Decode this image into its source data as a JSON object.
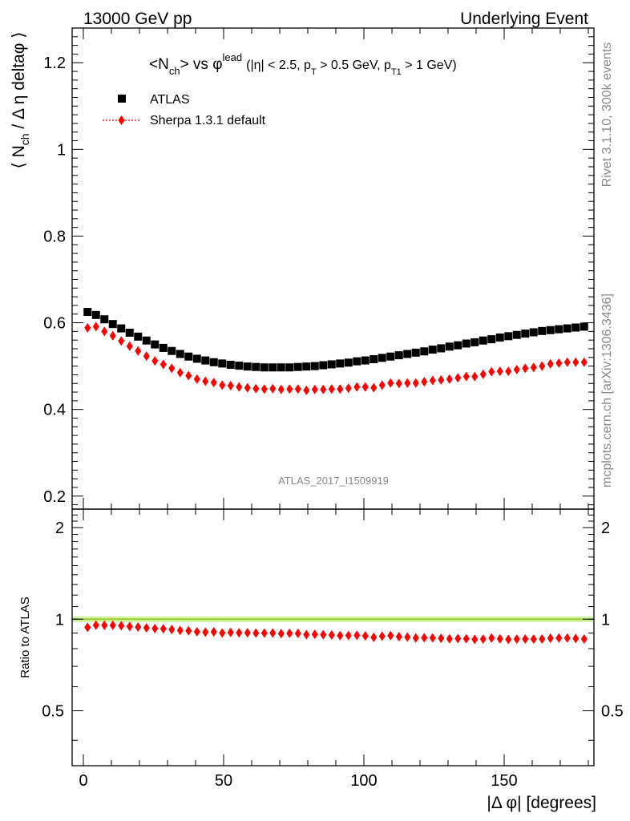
{
  "header": {
    "left": "13000 GeV pp",
    "right": "Underlying Event"
  },
  "side_labels": {
    "rivet": "Rivet 3.1.10,  300k events",
    "mcplots": "mcplots.cern.ch [arXiv:1306.3436]"
  },
  "analysis_id": "ATLAS_2017_I1509919",
  "chart_data": [
    {
      "type": "scatter",
      "title": {
        "lhs_main": "<N",
        "lhs_sub": "ch",
        "lhs_rest": "> vs ",
        "phi": "φ",
        "phi_sup": "lead",
        "cuts_a": "(|η| < 2.5, p",
        "cuts_sub1": "T",
        "cuts_b": " > 0.5 GeV, p",
        "cuts_sub2": "T1",
        "cuts_c": " > 1 GeV)"
      },
      "ylabel": "⟨ N_ch / Δ η deltaφ ⟩",
      "xlabel": "",
      "xlim": [
        -4,
        182
      ],
      "ylim": [
        0.17,
        1.28
      ],
      "yticks": [
        "0.2",
        "0.4",
        "0.6",
        "0.8",
        "1",
        "1.2"
      ],
      "ytick_values": [
        0.2,
        0.4,
        0.6,
        0.8,
        1.0,
        1.2
      ],
      "legend_position": "top-left",
      "x": [
        1.5,
        4.5,
        7.5,
        10.5,
        13.5,
        16.5,
        19.5,
        22.5,
        25.5,
        28.5,
        31.5,
        34.5,
        37.5,
        40.5,
        43.5,
        46.5,
        49.5,
        52.5,
        55.5,
        58.5,
        61.5,
        64.5,
        67.5,
        70.5,
        73.5,
        76.5,
        79.5,
        82.5,
        85.5,
        88.5,
        91.5,
        94.5,
        97.5,
        100.5,
        103.5,
        106.5,
        109.5,
        112.5,
        115.5,
        118.5,
        121.5,
        124.5,
        127.5,
        130.5,
        133.5,
        136.5,
        139.5,
        142.5,
        145.5,
        148.5,
        151.5,
        154.5,
        157.5,
        160.5,
        163.5,
        166.5,
        169.5,
        172.5,
        175.5,
        178.5
      ],
      "series": [
        {
          "name": "ATLAS",
          "color": "#000000",
          "marker": "square",
          "values": [
            0.625,
            0.618,
            0.608,
            0.597,
            0.587,
            0.577,
            0.568,
            0.559,
            0.55,
            0.542,
            0.535,
            0.528,
            0.522,
            0.517,
            0.513,
            0.509,
            0.506,
            0.503,
            0.501,
            0.499,
            0.498,
            0.497,
            0.497,
            0.497,
            0.497,
            0.498,
            0.499,
            0.5,
            0.502,
            0.504,
            0.506,
            0.508,
            0.511,
            0.513,
            0.516,
            0.519,
            0.522,
            0.525,
            0.528,
            0.531,
            0.534,
            0.538,
            0.541,
            0.545,
            0.548,
            0.552,
            0.555,
            0.559,
            0.562,
            0.566,
            0.569,
            0.572,
            0.575,
            0.578,
            0.581,
            0.583,
            0.585,
            0.587,
            0.589,
            0.591
          ]
        },
        {
          "name": "Sherpa 1.3.1 default",
          "color": "#ff0000",
          "marker": "diamond",
          "values": [
            0.588,
            0.591,
            0.58,
            0.57,
            0.558,
            0.546,
            0.535,
            0.523,
            0.512,
            0.504,
            0.495,
            0.485,
            0.478,
            0.47,
            0.465,
            0.462,
            0.456,
            0.455,
            0.452,
            0.45,
            0.448,
            0.447,
            0.448,
            0.446,
            0.447,
            0.447,
            0.444,
            0.446,
            0.446,
            0.447,
            0.447,
            0.449,
            0.452,
            0.452,
            0.45,
            0.456,
            0.461,
            0.46,
            0.461,
            0.461,
            0.464,
            0.467,
            0.468,
            0.47,
            0.473,
            0.476,
            0.476,
            0.481,
            0.487,
            0.488,
            0.488,
            0.492,
            0.495,
            0.497,
            0.5,
            0.505,
            0.507,
            0.509,
            0.509,
            0.509
          ]
        }
      ]
    },
    {
      "type": "scatter",
      "ylabel": "Ratio to ATLAS",
      "xlabel": "|Δ φ| [degrees]",
      "xlim": [
        -4,
        182
      ],
      "ylim": [
        0.33,
        2.3
      ],
      "log_y": true,
      "yticks": [
        "0.5",
        "1",
        "2"
      ],
      "ytick_values": [
        0.5,
        1.0,
        2.0
      ],
      "xticks": [
        "0",
        "50",
        "100",
        "150"
      ],
      "xtick_values": [
        0,
        50,
        100,
        150
      ],
      "reference_band": {
        "center": 1.0,
        "low": 0.99,
        "high": 1.01,
        "color": "#9acd32",
        "band_color": "#d4f2a0"
      },
      "series": [
        {
          "name": "Sherpa 1.3.1 default",
          "color": "#ff0000",
          "marker": "diamond",
          "values": [
            0.94,
            0.956,
            0.955,
            0.955,
            0.951,
            0.946,
            0.942,
            0.936,
            0.931,
            0.93,
            0.925,
            0.919,
            0.916,
            0.909,
            0.906,
            0.908,
            0.901,
            0.905,
            0.902,
            0.902,
            0.9,
            0.9,
            0.901,
            0.897,
            0.899,
            0.898,
            0.89,
            0.892,
            0.889,
            0.887,
            0.883,
            0.884,
            0.885,
            0.881,
            0.872,
            0.879,
            0.883,
            0.876,
            0.873,
            0.868,
            0.869,
            0.868,
            0.865,
            0.862,
            0.863,
            0.862,
            0.858,
            0.86,
            0.867,
            0.862,
            0.858,
            0.86,
            0.861,
            0.86,
            0.861,
            0.866,
            0.867,
            0.867,
            0.864,
            0.861
          ]
        }
      ]
    }
  ]
}
